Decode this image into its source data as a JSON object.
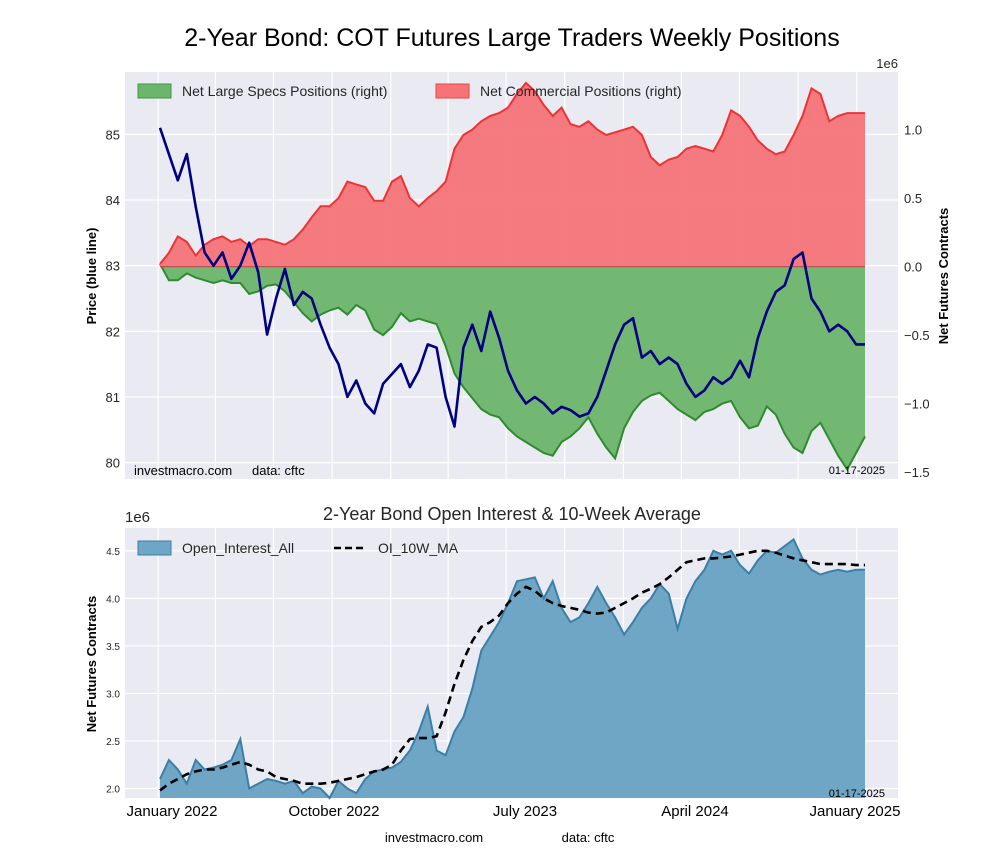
{
  "figure_title": "2-Year Bond: COT Futures Large Traders Weekly Positions",
  "watermark": {
    "site": "investmacro.com",
    "source": "data: cftc",
    "date": "01-17-2025"
  },
  "colors": {
    "specs": "#2e8b2e",
    "specs_fill": "#6cb56c",
    "commercial": "#ee3333",
    "commercial_fill": "#f47478",
    "price": "#000080",
    "oi": "#3a7fa6",
    "oi_fill": "#6fa6c6",
    "ma": "#000000",
    "plot_bg": "#eaeaf2"
  },
  "chart_data": [
    {
      "type": "area",
      "title": "2-Year Bond: COT Futures Large Traders Weekly Positions",
      "ylabel_left": "Price (blue line)",
      "ylabel_right": "Net Futures Contracts",
      "right_axis_multiplier": "1e6",
      "ylim_left": [
        79.75,
        85.95
      ],
      "ylim_right": [
        -1.55,
        1.42
      ],
      "yticks_left": [
        "80",
        "81",
        "82",
        "83",
        "84",
        "85"
      ],
      "yticks_right": [
        "−1.5",
        "−1.0",
        "−0.5",
        "0.0",
        "0.5",
        "1.0"
      ],
      "ytick_values_right": [
        -1.5,
        -1.0,
        -0.5,
        0.0,
        0.5,
        1.0
      ],
      "grid": true,
      "legend": {
        "placement": "top-left",
        "entries": [
          "Net Large Specs Positions (right)",
          "Net Commercial Positions (right)"
        ]
      },
      "x_start": "2022-01-04",
      "x_end": "2025-01-14",
      "x_step_weeks": 2,
      "series": [
        {
          "name": "Net Commercial Positions (right)",
          "axis": "right",
          "unit": "millions of contracts",
          "values": [
            0.02,
            0.1,
            0.22,
            0.18,
            0.08,
            0.16,
            0.2,
            0.22,
            0.18,
            0.2,
            0.15,
            0.2,
            0.2,
            0.18,
            0.16,
            0.2,
            0.27,
            0.36,
            0.44,
            0.44,
            0.5,
            0.62,
            0.6,
            0.58,
            0.48,
            0.48,
            0.62,
            0.66,
            0.5,
            0.44,
            0.5,
            0.55,
            0.62,
            0.86,
            0.96,
            1.0,
            1.06,
            1.1,
            1.12,
            1.16,
            1.26,
            1.34,
            1.28,
            1.18,
            1.1,
            1.16,
            1.04,
            1.02,
            1.06,
            1.0,
            0.96,
            0.98,
            1.0,
            1.02,
            0.96,
            0.8,
            0.74,
            0.78,
            0.8,
            0.86,
            0.88,
            0.86,
            0.84,
            0.96,
            1.14,
            1.1,
            1.02,
            0.92,
            0.86,
            0.82,
            0.84,
            0.96,
            1.1,
            1.3,
            1.26,
            1.06,
            1.1,
            1.12,
            1.12,
            1.12
          ]
        },
        {
          "name": "Net Large Specs Positions (right)",
          "axis": "right",
          "unit": "millions of contracts",
          "values": [
            0.02,
            -0.1,
            -0.1,
            -0.05,
            -0.08,
            -0.1,
            -0.12,
            -0.1,
            -0.12,
            -0.12,
            -0.2,
            -0.18,
            -0.14,
            -0.13,
            -0.18,
            -0.26,
            -0.34,
            -0.4,
            -0.35,
            -0.32,
            -0.3,
            -0.35,
            -0.28,
            -0.32,
            -0.46,
            -0.5,
            -0.44,
            -0.34,
            -0.4,
            -0.38,
            -0.4,
            -0.42,
            -0.58,
            -0.78,
            -0.88,
            -0.96,
            -1.04,
            -1.08,
            -1.1,
            -1.18,
            -1.24,
            -1.28,
            -1.32,
            -1.36,
            -1.38,
            -1.28,
            -1.24,
            -1.18,
            -1.1,
            -1.22,
            -1.32,
            -1.4,
            -1.18,
            -1.06,
            -0.98,
            -0.94,
            -0.92,
            -0.98,
            -1.04,
            -1.08,
            -1.12,
            -1.06,
            -1.04,
            -1.0,
            -0.98,
            -1.1,
            -1.18,
            -1.16,
            -1.02,
            -1.08,
            -1.22,
            -1.32,
            -1.36,
            -1.2,
            -1.14,
            -1.26,
            -1.38,
            -1.48,
            -1.36,
            -1.24
          ]
        },
        {
          "name": "Price",
          "axis": "left",
          "unit": "price",
          "values": [
            85.1,
            84.7,
            84.3,
            84.7,
            83.9,
            83.2,
            83.0,
            83.2,
            82.8,
            83.0,
            83.35,
            82.9,
            81.95,
            82.5,
            82.95,
            82.4,
            82.6,
            82.5,
            82.1,
            81.75,
            81.5,
            81.0,
            81.25,
            80.9,
            80.75,
            81.2,
            81.35,
            81.5,
            81.15,
            81.4,
            81.8,
            81.75,
            81.0,
            80.55,
            81.75,
            82.1,
            81.7,
            82.3,
            81.9,
            81.4,
            81.1,
            80.9,
            81.0,
            80.9,
            80.75,
            80.85,
            80.8,
            80.7,
            80.75,
            81.0,
            81.4,
            81.8,
            82.1,
            82.2,
            81.6,
            81.7,
            81.5,
            81.6,
            81.5,
            81.2,
            81.0,
            81.1,
            81.3,
            81.2,
            81.3,
            81.55,
            81.3,
            81.9,
            82.3,
            82.6,
            82.7,
            83.1,
            83.2,
            82.5,
            82.3,
            82.0,
            82.1,
            82.0,
            81.8,
            81.8
          ]
        }
      ]
    },
    {
      "type": "area",
      "title": "2-Year Bond Open Interest & 10-Week Average",
      "ylabel": "Net Futures Contracts",
      "y_multiplier": "1e6",
      "ylim": [
        1.9,
        4.74
      ],
      "yticks": [
        "2.0",
        "2.5",
        "3.0",
        "3.5",
        "4.0",
        "4.5"
      ],
      "ytick_values": [
        2.0,
        2.5,
        3.0,
        3.5,
        4.0,
        4.5
      ],
      "grid": true,
      "legend": {
        "placement": "top-left",
        "entries": [
          "Open_Interest_All",
          "OI_10W_MA"
        ]
      },
      "x_ticks": [
        "January 2022",
        "October 2022",
        "July 2023",
        "April 2024",
        "January 2025"
      ],
      "x_tick_dates": [
        "2022-01-01",
        "2022-10-01",
        "2023-07-01",
        "2024-04-01",
        "2025-01-01"
      ],
      "x_start": "2022-01-04",
      "x_end": "2025-01-14",
      "x_step_weeks": 2,
      "series": [
        {
          "name": "Open_Interest_All",
          "unit": "millions of contracts",
          "values": [
            2.1,
            2.3,
            2.2,
            2.05,
            2.3,
            2.2,
            2.22,
            2.25,
            2.3,
            2.52,
            2.0,
            2.05,
            2.1,
            2.08,
            2.05,
            2.08,
            1.95,
            2.02,
            2.0,
            1.9,
            2.08,
            2.0,
            1.95,
            2.1,
            2.18,
            2.2,
            2.22,
            2.28,
            2.4,
            2.6,
            2.86,
            2.4,
            2.35,
            2.6,
            2.75,
            3.05,
            3.45,
            3.6,
            3.75,
            3.95,
            4.18,
            4.2,
            4.22,
            4.0,
            4.18,
            3.9,
            3.75,
            3.8,
            3.95,
            4.12,
            3.95,
            3.8,
            3.62,
            3.75,
            3.9,
            4.0,
            4.15,
            4.05,
            3.68,
            4.0,
            4.18,
            4.3,
            4.5,
            4.46,
            4.5,
            4.35,
            4.26,
            4.4,
            4.5,
            4.48,
            4.55,
            4.62,
            4.42,
            4.3,
            4.25,
            4.28,
            4.3,
            4.28,
            4.3,
            4.3
          ]
        },
        {
          "name": "OI_10W_MA",
          "unit": "millions of contracts",
          "values": [
            1.98,
            2.05,
            2.1,
            2.15,
            2.18,
            2.2,
            2.2,
            2.22,
            2.25,
            2.28,
            2.25,
            2.2,
            2.18,
            2.12,
            2.1,
            2.08,
            2.05,
            2.05,
            2.05,
            2.06,
            2.08,
            2.1,
            2.12,
            2.15,
            2.18,
            2.2,
            2.25,
            2.4,
            2.52,
            2.53,
            2.53,
            2.55,
            2.8,
            3.1,
            3.35,
            3.55,
            3.7,
            3.75,
            3.82,
            3.95,
            4.05,
            4.12,
            4.08,
            4.0,
            3.95,
            3.92,
            3.9,
            3.88,
            3.85,
            3.84,
            3.85,
            3.9,
            3.95,
            4.0,
            4.06,
            4.1,
            4.15,
            4.22,
            4.3,
            4.38,
            4.4,
            4.42,
            4.42,
            4.43,
            4.44,
            4.46,
            4.48,
            4.5,
            4.5,
            4.48,
            4.45,
            4.42,
            4.4,
            4.38,
            4.36,
            4.36,
            4.36,
            4.36,
            4.35,
            4.35
          ]
        }
      ]
    }
  ]
}
